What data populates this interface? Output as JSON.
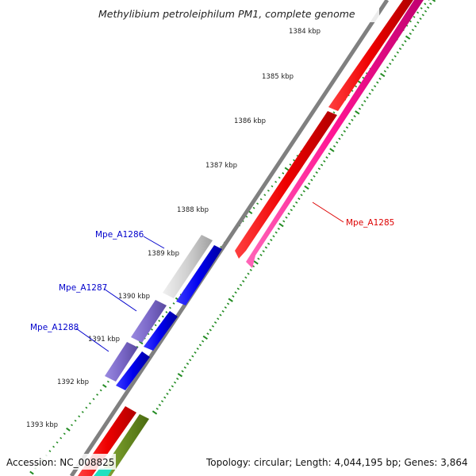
{
  "title": "Methylibium petroleiphilum PM1, complete genome",
  "ticks": [
    {
      "label": "1384 kbp"
    },
    {
      "label": "1385 kbp"
    },
    {
      "label": "1386 kbp"
    },
    {
      "label": "1387 kbp"
    },
    {
      "label": "1388 kbp"
    },
    {
      "label": "1389 kbp"
    },
    {
      "label": "1390 kbp"
    },
    {
      "label": "1391 kbp"
    },
    {
      "label": "1392 kbp"
    },
    {
      "label": "1393 kbp"
    }
  ],
  "gene_labels": [
    {
      "name": "Mpe_A1285",
      "color": "#dd0000"
    },
    {
      "name": "Mpe_A1286",
      "color": "#0000cc"
    },
    {
      "name": "Mpe_A1287",
      "color": "#0000cc"
    },
    {
      "name": "Mpe_A1288",
      "color": "#0000cc"
    }
  ],
  "colors": {
    "backbone": "#808080",
    "forward_red": "#ee0000",
    "reverse_pink": "#ff1493",
    "blue_cds": "#0000ee",
    "purple_cds": "#7b68c8",
    "gray_cds": "#c8c8c8",
    "olive_cds": "#6b8e23",
    "teal_cds": "#20e0c0",
    "tick_green": "#228b22"
  },
  "footer": {
    "accession": "Accession: NC_008825",
    "summary": "Topology: circular; Length: 4,044,195 bp; Genes: 3,864"
  }
}
